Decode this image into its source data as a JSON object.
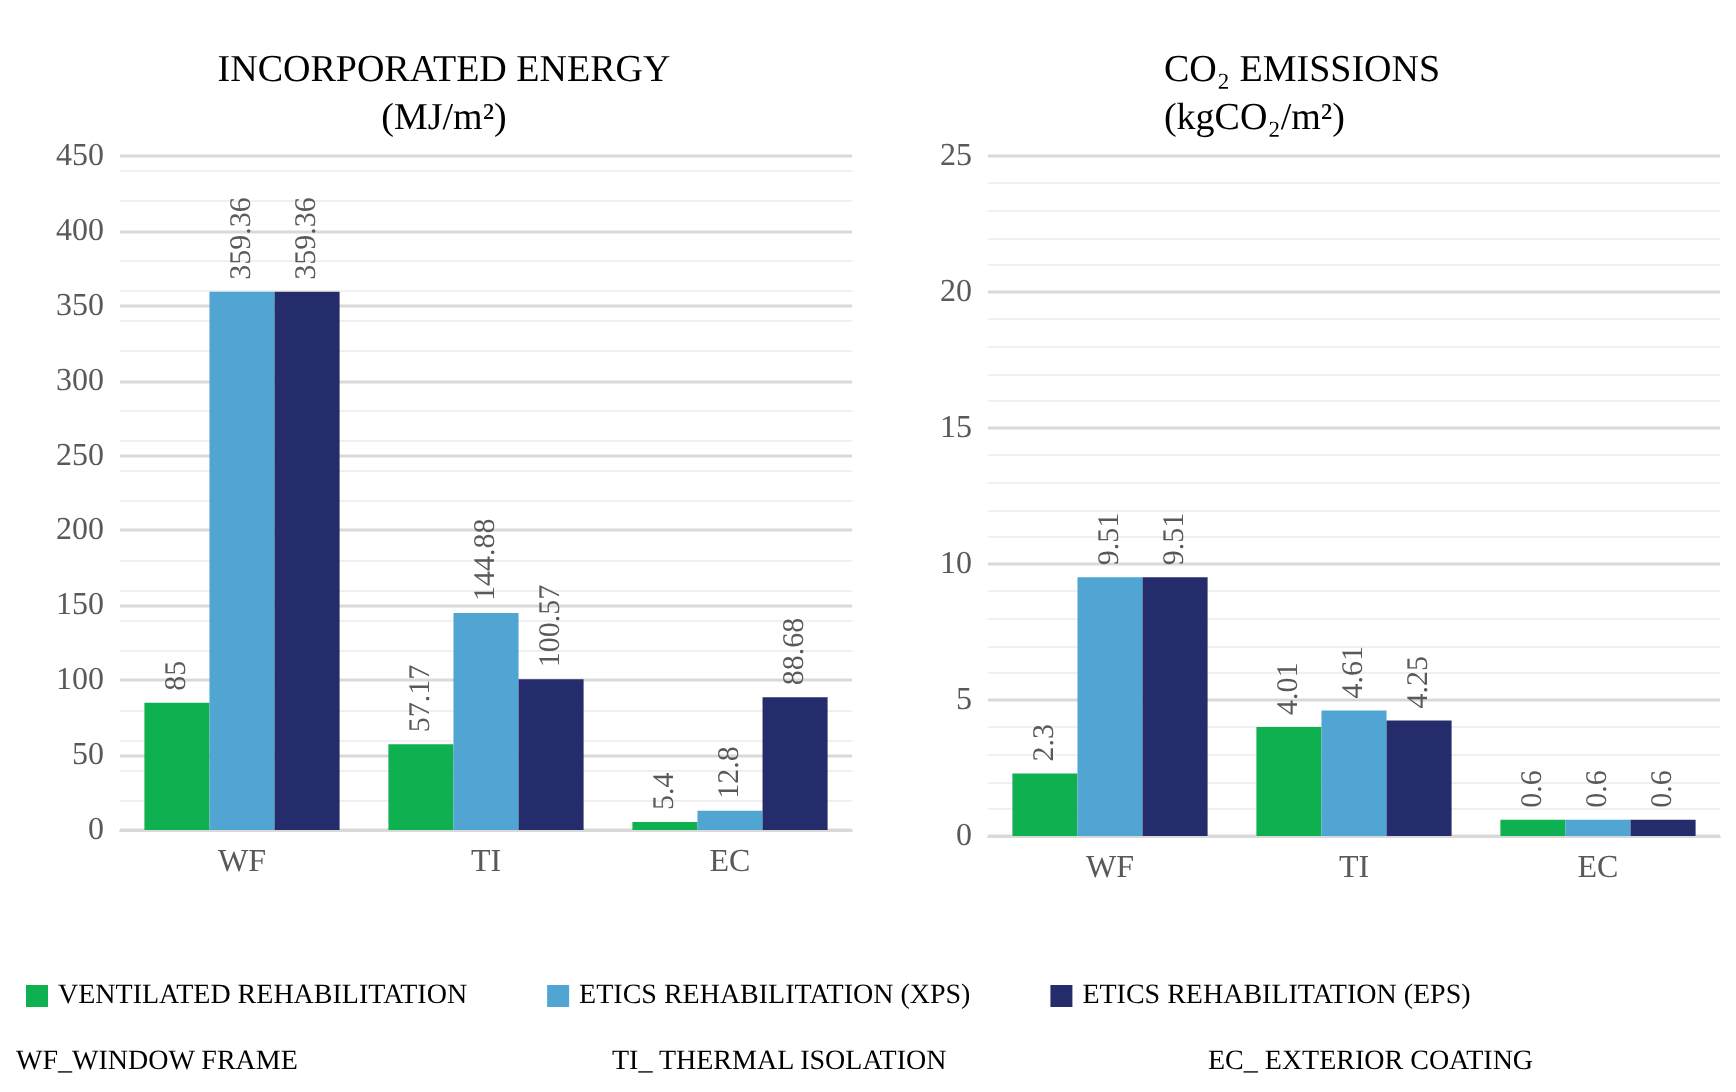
{
  "chart_data": [
    {
      "type": "bar",
      "title": "INCORPORATED ENERGY\n(MJ/m²)",
      "categories": [
        "WF",
        "TI",
        "EC"
      ],
      "series": [
        {
          "name": "VENTILATED REHABILITATION",
          "color": "#0fb04f",
          "values": [
            85,
            57.17,
            5.4
          ]
        },
        {
          "name": "ETICS REHABILITATION (XPS)",
          "color": "#50a5d2",
          "values": [
            359.36,
            144.88,
            12.8
          ]
        },
        {
          "name": "ETICS REHABILITATION (EPS)",
          "color": "#252c6b",
          "values": [
            359.36,
            100.57,
            88.68
          ]
        }
      ],
      "ylim": [
        0,
        450
      ],
      "yticks": [
        0,
        50,
        100,
        150,
        200,
        250,
        300,
        350,
        400,
        450
      ],
      "grid": true,
      "data_labels": true,
      "legend": "bottom",
      "annotations": [
        "WF_WINDOW FRAME",
        "TI_ THERMAL ISOLATION",
        "EC_ EXTERIOR COATING"
      ]
    },
    {
      "type": "bar",
      "title": "CO₂ EMISSIONS\n(kgCO₂/m²)",
      "categories": [
        "WF",
        "TI",
        "EC"
      ],
      "series": [
        {
          "color": "#0fb04f",
          "values": [
            2.3,
            4.01,
            0.6
          ]
        },
        {
          "color": "#50a5d2",
          "values": [
            9.51,
            4.61,
            0.6
          ]
        },
        {
          "color": "#252c6b",
          "values": [
            9.51,
            4.25,
            0.6
          ]
        }
      ],
      "ylim": [
        0,
        25
      ],
      "yticks": [
        0,
        5,
        10,
        15,
        20,
        25
      ],
      "grid": true,
      "data_labels": true
    }
  ]
}
